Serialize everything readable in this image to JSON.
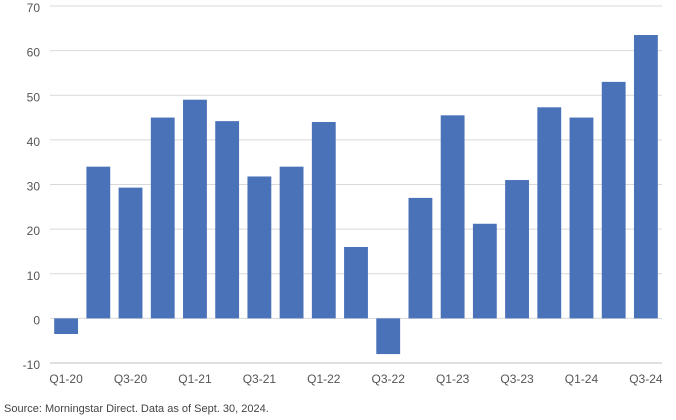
{
  "chart_data": {
    "type": "bar",
    "categories": [
      "Q1-20",
      "Q2-20",
      "Q3-20",
      "Q4-20",
      "Q1-21",
      "Q2-21",
      "Q3-21",
      "Q4-21",
      "Q1-22",
      "Q2-22",
      "Q3-22",
      "Q4-22",
      "Q1-23",
      "Q2-23",
      "Q3-23",
      "Q4-23",
      "Q1-24",
      "Q2-24",
      "Q3-24"
    ],
    "tick_labels_shown": [
      "Q1-20",
      "Q3-20",
      "Q1-21",
      "Q3-21",
      "Q1-22",
      "Q3-22",
      "Q1-23",
      "Q3-23",
      "Q1-24",
      "Q3-24"
    ],
    "values": [
      -3.5,
      34,
      29.3,
      45,
      49,
      44.2,
      31.8,
      34,
      44,
      16,
      -8,
      27,
      45.5,
      21.2,
      31,
      47.3,
      45,
      53,
      63.5
    ],
    "ylim": [
      -10,
      70
    ],
    "yticks": [
      -10,
      0,
      10,
      20,
      30,
      40,
      50,
      60,
      70
    ],
    "grid": true,
    "bar_color": "#4a72b8",
    "grid_color": "#d9d9d9"
  },
  "source_note": "Source: Morningstar Direct. Data as of Sept. 30, 2024."
}
